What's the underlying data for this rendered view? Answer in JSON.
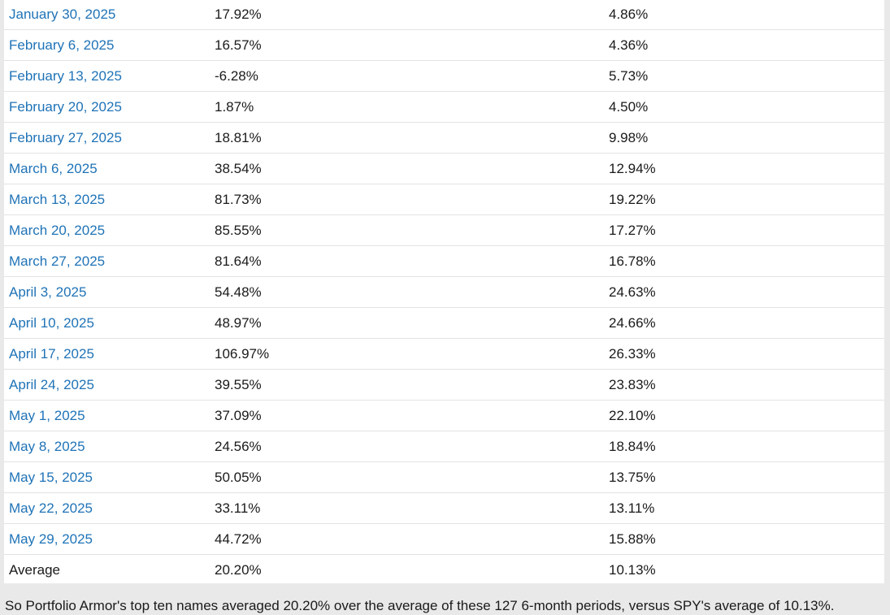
{
  "rows": [
    {
      "date": "January 30, 2025",
      "portfolio": "17.92%",
      "spy": "4.86%"
    },
    {
      "date": "February 6, 2025",
      "portfolio": "16.57%",
      "spy": "4.36%"
    },
    {
      "date": "February 13, 2025",
      "portfolio": "-6.28%",
      "spy": "5.73%"
    },
    {
      "date": "February 20, 2025",
      "portfolio": "1.87%",
      "spy": "4.50%"
    },
    {
      "date": "February 27, 2025",
      "portfolio": "18.81%",
      "spy": "9.98%"
    },
    {
      "date": "March 6, 2025",
      "portfolio": "38.54%",
      "spy": "12.94%"
    },
    {
      "date": "March 13, 2025",
      "portfolio": "81.73%",
      "spy": "19.22%"
    },
    {
      "date": "March 20, 2025",
      "portfolio": "85.55%",
      "spy": "17.27%"
    },
    {
      "date": "March 27, 2025",
      "portfolio": "81.64%",
      "spy": "16.78%"
    },
    {
      "date": "April 3, 2025",
      "portfolio": "54.48%",
      "spy": "24.63%"
    },
    {
      "date": "April 10, 2025",
      "portfolio": "48.97%",
      "spy": "24.66%"
    },
    {
      "date": "April 17, 2025",
      "portfolio": "106.97%",
      "spy": "26.33%"
    },
    {
      "date": "April 24, 2025",
      "portfolio": "39.55%",
      "spy": "23.83%"
    },
    {
      "date": "May 1, 2025",
      "portfolio": "37.09%",
      "spy": "22.10%"
    },
    {
      "date": "May 8, 2025",
      "portfolio": "24.56%",
      "spy": "18.84%"
    },
    {
      "date": "May 15, 2025",
      "portfolio": "50.05%",
      "spy": "13.75%"
    },
    {
      "date": "May 22, 2025",
      "portfolio": "33.11%",
      "spy": "13.11%"
    },
    {
      "date": "May 29, 2025",
      "portfolio": "44.72%",
      "spy": "15.88%"
    }
  ],
  "average": {
    "label": "Average",
    "portfolio": "20.20%",
    "spy": "10.13%"
  },
  "caption": "So Portfolio Armor's top ten names averaged 20.20% over the average of these 127 6-month periods, versus SPY's average of 10.13%.",
  "colors": {
    "link": "#1f73b7",
    "text": "#1a1a1a",
    "background": "#e9e9e9",
    "row_border": "#e3e3e3"
  }
}
